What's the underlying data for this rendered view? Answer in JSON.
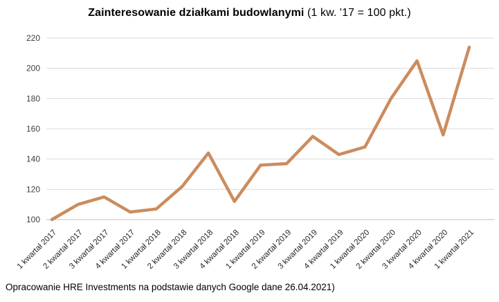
{
  "title": {
    "bold": "Zainteresowanie działkami budowlanymi",
    "normal": " (1 kw. '17 = 100 pkt.)"
  },
  "footer": "Opracowanie HRE Investments na podstawie danych Google dane 26.04.2021)",
  "colors": {
    "line": "#CC8C5E",
    "gridline": "#D9D9D9",
    "axis_line": "#BFBFBF",
    "y_tick_label": "#404040",
    "x_tick_label": "#262626",
    "title_text": "#000000",
    "footer_text": "#000000",
    "background": "#FFFFFF"
  },
  "chart_data": {
    "type": "line",
    "title": "Zainteresowanie działkami budowlanymi (1 kw. '17 = 100 pkt.)",
    "categories": [
      "1 kwartał 2017",
      "2 kwartał 2017",
      "3 kwartał 2017",
      "4 kwartał 2017",
      "1 kwartał 2018",
      "2 kwartał 2018",
      "3 kwartał 2018",
      "4 kwartał 2018",
      "1 kwartał 2019",
      "2 kwartał 2019",
      "3 kwartał 2019",
      "4 kwartał 2019",
      "1 kwartał 2020",
      "2 kwartał 2020",
      "3 kwartał 2020",
      "4 kwartał 2020",
      "1 kwartał 2021"
    ],
    "values": [
      100,
      110,
      115,
      105,
      107,
      122,
      144,
      112,
      136,
      137,
      155,
      143,
      148,
      180,
      205,
      156,
      214
    ],
    "xlabel": "",
    "ylabel": "",
    "ylim": [
      100,
      220
    ],
    "ytick_step": 20,
    "yticks": [
      100,
      120,
      140,
      160,
      180,
      200,
      220
    ],
    "grid": true,
    "legend": false,
    "baseline_note": "1 kw. '17 = 100 pkt."
  }
}
